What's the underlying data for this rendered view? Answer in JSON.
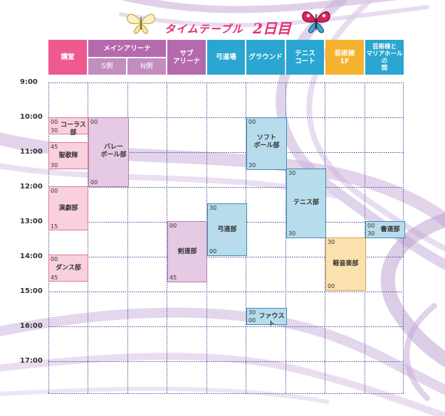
{
  "title": {
    "text": "タイムテーブル",
    "day": "2日目"
  },
  "colors": {
    "pink": "#ee5a8f",
    "purple": "#b46aad",
    "blue": "#2aa6d0",
    "orange": "#f5b22e"
  },
  "headers": {
    "kodo": "講堂",
    "main_arena": "メインアリーナ",
    "s_side": "S側",
    "n_side": "N側",
    "sub_arena": "サブ\nアリーナ",
    "kyudojo": "弓道場",
    "ground": "グラウンド",
    "tennis_court": "テニス\nコート",
    "geijutsu_1f": "芸術棟\n1F",
    "maria_hall": "芸術棟と\nマリアホールの\n間"
  },
  "times": [
    "9:00",
    "10:00",
    "11:00",
    "12:00",
    "13:00",
    "14:00",
    "15:00",
    "16:00",
    "17:00"
  ],
  "events": {
    "chorus": {
      "label": "コーラス部",
      "start": "00",
      "end": "30"
    },
    "seikatai": {
      "label": "聖歌隊",
      "start": "45",
      "end": "30"
    },
    "engeki": {
      "label": "演劇部",
      "start": "00",
      "end": "15"
    },
    "dance": {
      "label": "ダンス部",
      "start": "00",
      "end": "45"
    },
    "volleyball": {
      "label": "バレー\nボール部",
      "start": "00",
      "end": "00"
    },
    "kendo": {
      "label": "剣道部",
      "start": "00",
      "end": "45"
    },
    "kyudo": {
      "label": "弓道部",
      "start": "30",
      "end": "00"
    },
    "softball": {
      "label": "ソフト\nボール部",
      "start": "00",
      "end": "30"
    },
    "faust": {
      "label": "ファウスト",
      "start": "30",
      "end": "00"
    },
    "tennis": {
      "label": "テニス部",
      "start": "30",
      "end": "30"
    },
    "keiongaku": {
      "label": "軽音楽部",
      "start": "30",
      "end": "00"
    },
    "shodo": {
      "label": "書道部",
      "start": "00",
      "end": "30"
    }
  }
}
